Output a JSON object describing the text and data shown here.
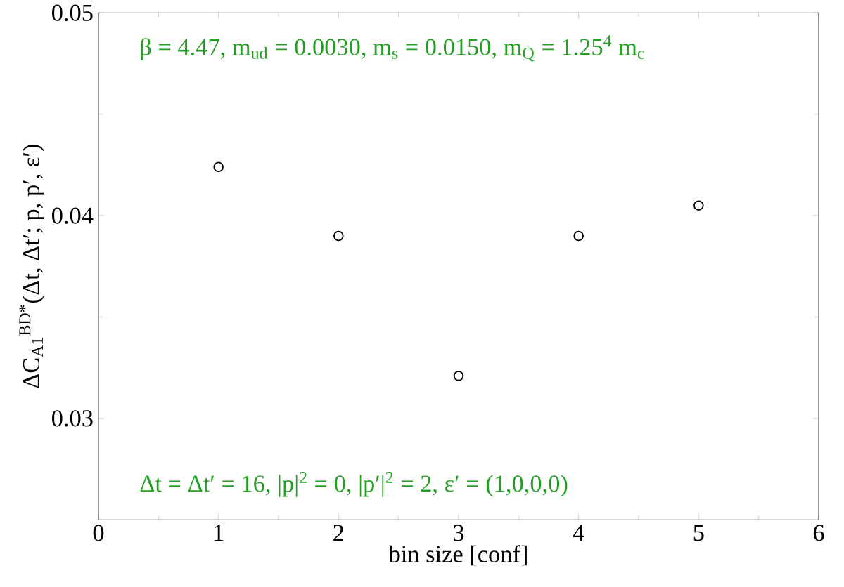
{
  "chart_data": {
    "type": "scatter",
    "xlabel": "bin size [conf]",
    "ylabel": "ΔC$_{A1}$$^{BD*}$(Δt, Δt′; p, p′, ε′)",
    "x": [
      1,
      2,
      3,
      4,
      5
    ],
    "series": [
      {
        "color": "#000000",
        "values": [
          0.0424,
          0.039,
          0.0321,
          0.039,
          0.0405
        ]
      }
    ],
    "xlim": [
      0,
      6
    ],
    "ylim": [
      0.025,
      0.05
    ],
    "xticks": [
      0,
      1,
      2,
      3,
      4,
      5,
      6
    ],
    "yticks": [
      0.03,
      0.04,
      0.05
    ],
    "marker": "circle",
    "grid": false,
    "annotations": [
      "β = 4.47,  m$_{ud}$ = 0.0030,  m$_{s}$ = 0.0150,  m$_{Q}$ = 1.25$^{4}$ m$_{c}$",
      "Δt = Δt′ = 16,  |p|$^{2}$ = 0,  |p′|$^{2}$ = 2,  ε′ = (1,0,0,0)"
    ]
  }
}
